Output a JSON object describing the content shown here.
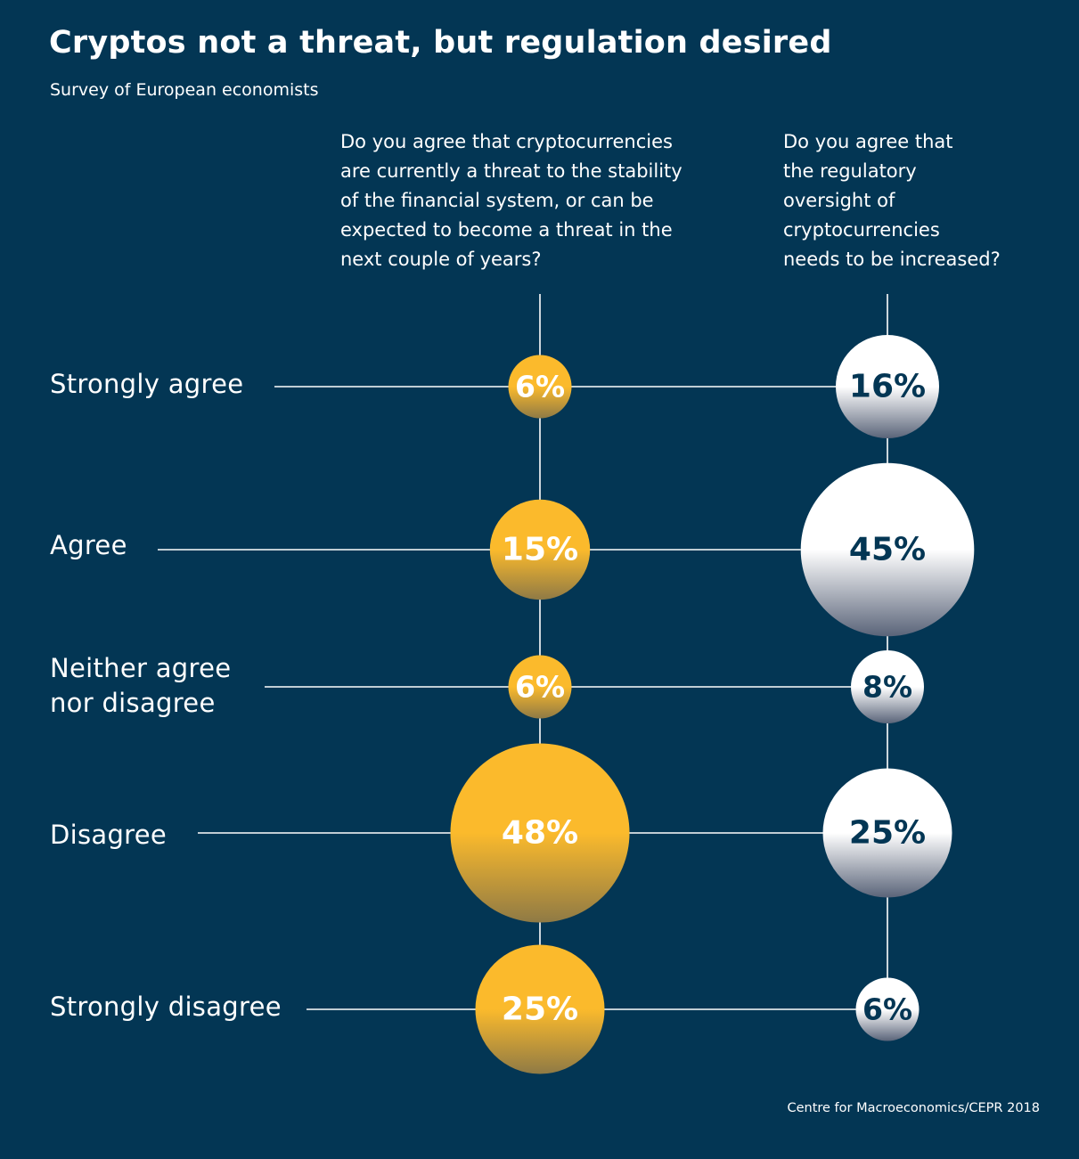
{
  "header": {
    "title": "Cryptos not a threat, but regulation desired",
    "subtitle": "Survey of European economists"
  },
  "source": "Centre for Macroeconomics/CEPR 2018",
  "colors": {
    "background": "#033654",
    "threat_bubble": "#fbba2c",
    "regulation_bubble": "#ffffff",
    "line": "#ffffff"
  },
  "chart_data": {
    "type": "bubble",
    "categories": [
      [
        "Strongly agree"
      ],
      [
        "Agree"
      ],
      [
        "Neither agree",
        "nor disagree"
      ],
      [
        "Disagree"
      ],
      [
        "Strongly disagree"
      ]
    ],
    "series": [
      {
        "question": [
          "Do you agree that cryptocurrencies",
          "are currently a threat to the stability",
          "of the financial system, or can be",
          "expected to become a threat in the",
          "next couple of years?"
        ],
        "values": [
          6,
          15,
          6,
          48,
          25
        ],
        "labels": [
          "6%",
          "15%",
          "6%",
          "48%",
          "25%"
        ]
      },
      {
        "question": [
          "Do you agree that",
          "the regulatory",
          "oversight of",
          "cryptocurrencies",
          "needs to be increased?"
        ],
        "values": [
          16,
          45,
          8,
          25,
          6
        ],
        "labels": [
          "16%",
          "45%",
          "8%",
          "25%",
          "6%"
        ]
      }
    ]
  }
}
